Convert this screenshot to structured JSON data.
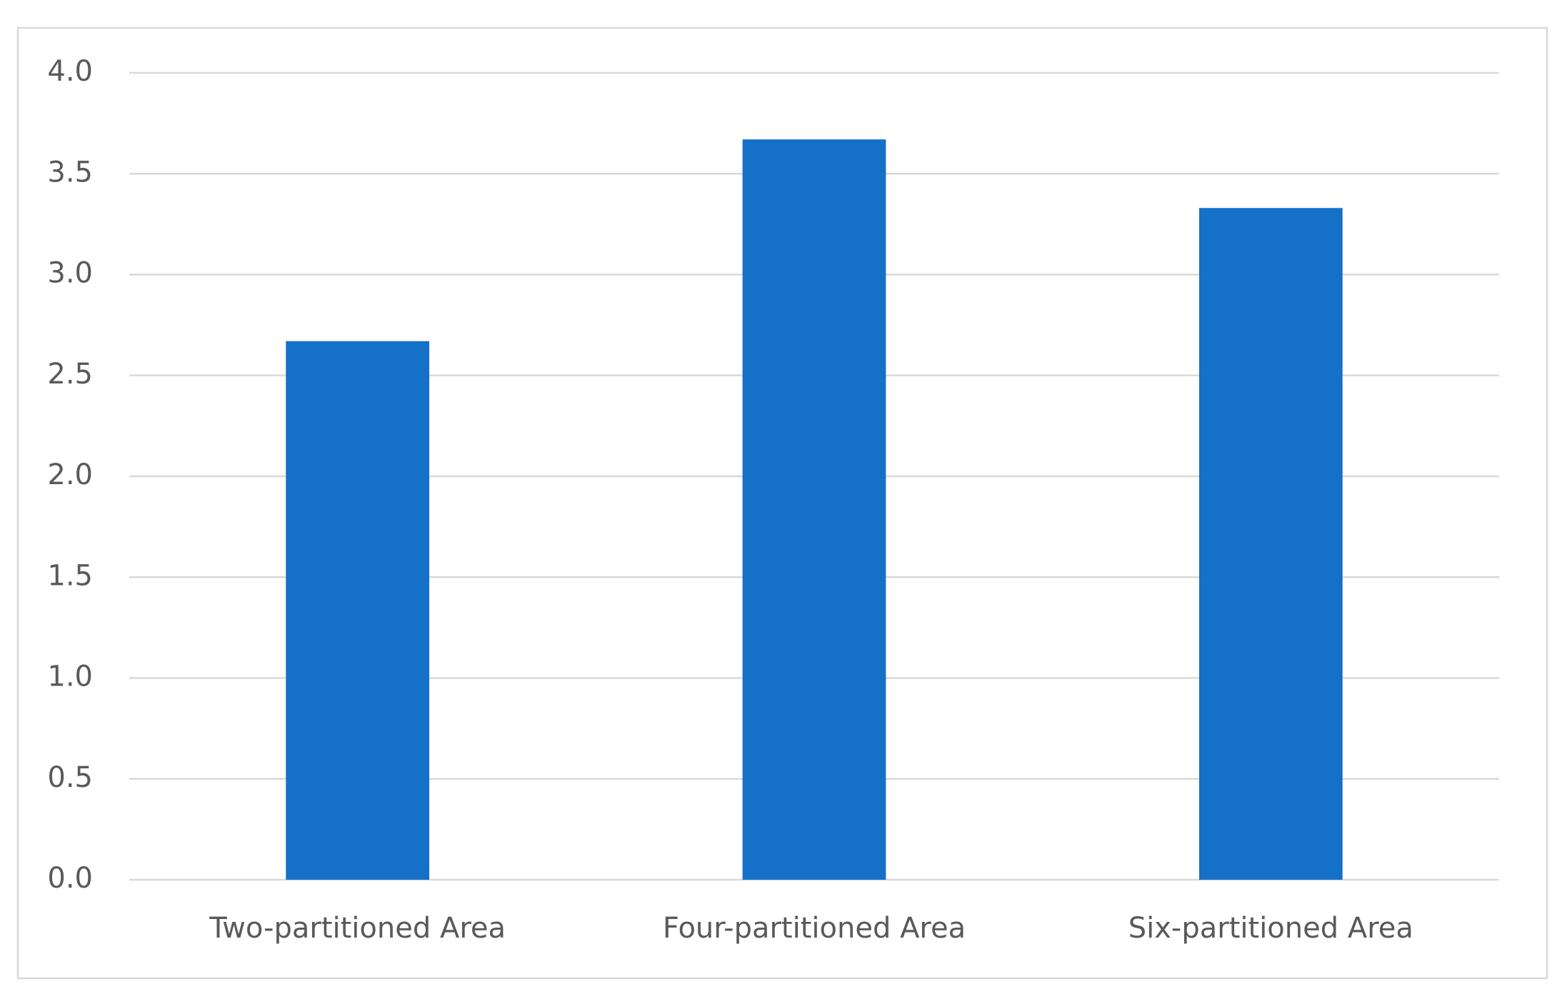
{
  "chart_data": {
    "type": "bar",
    "categories": [
      "Two-partitioned Area",
      "Four-partitioned Area",
      "Six-partitioned Area"
    ],
    "values": [
      2.67,
      3.67,
      3.33
    ],
    "color": "#1570c8",
    "ylim": [
      0,
      4
    ],
    "yticks": [
      {
        "value": 0,
        "label": "0.0"
      },
      {
        "value": 0.5,
        "label": "0.5"
      },
      {
        "value": 1,
        "label": "1.0"
      },
      {
        "value": 1.5,
        "label": "1.5"
      },
      {
        "value": 2,
        "label": "2.0"
      },
      {
        "value": 2.5,
        "label": "2.5"
      },
      {
        "value": 3,
        "label": "3.0"
      },
      {
        "value": 3.5,
        "label": "3.5"
      },
      {
        "value": 4,
        "label": "4.0"
      }
    ],
    "grid": true
  }
}
